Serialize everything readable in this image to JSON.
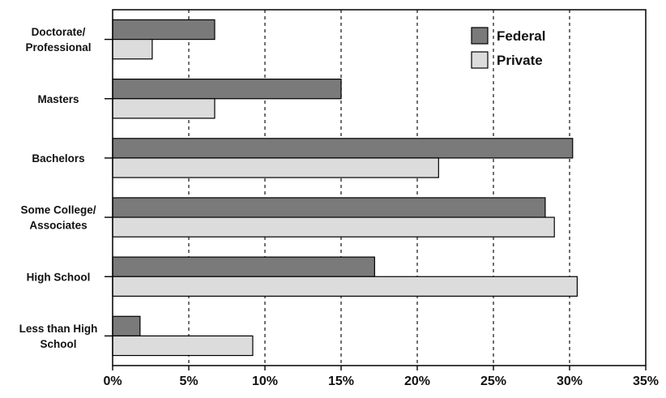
{
  "chart_data": {
    "type": "bar",
    "orientation": "horizontal",
    "categories": [
      [
        "Doctorate/",
        "Professional"
      ],
      [
        "Masters"
      ],
      [
        "Bachelors"
      ],
      [
        "Some College/",
        "Associates"
      ],
      [
        "High School"
      ],
      [
        "Less than High",
        "School"
      ]
    ],
    "series": [
      {
        "name": "Federal",
        "color": "#7a7a7a",
        "values": [
          6.7,
          15.0,
          30.2,
          28.4,
          17.2,
          1.8
        ]
      },
      {
        "name": "Private",
        "color": "#dcdcdc",
        "values": [
          2.6,
          6.7,
          21.4,
          29.0,
          30.5,
          9.2
        ]
      }
    ],
    "xlim": [
      0,
      35
    ],
    "x_ticks": [
      "0%",
      "5%",
      "10%",
      "15%",
      "20%",
      "25%",
      "30%",
      "35%"
    ],
    "title": "",
    "xlabel": "",
    "ylabel": "",
    "grid": "vertical dashed",
    "legend_position": "top-right"
  }
}
